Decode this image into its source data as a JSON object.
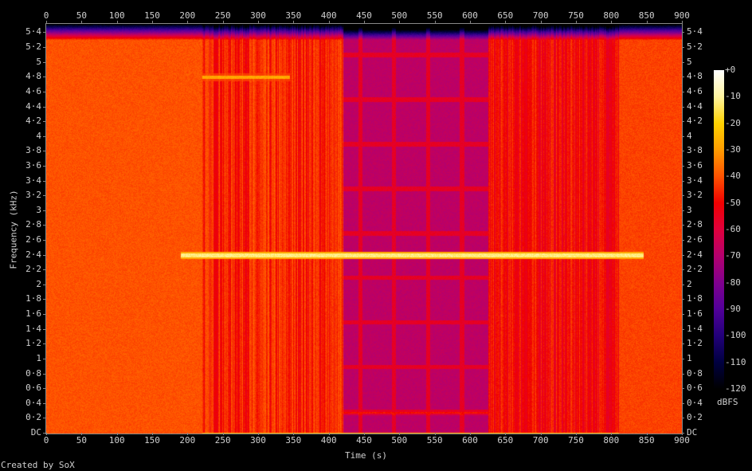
{
  "chart_data": {
    "type": "heatmap",
    "subtype": "spectrogram",
    "xlabel": "Time (s)",
    "ylabel": "Frequency (kHz)",
    "xlim": [
      0,
      900
    ],
    "ylim": [
      0,
      5.5125
    ],
    "x_ticks": [
      "0",
      "50",
      "100",
      "150",
      "200",
      "250",
      "300",
      "350",
      "400",
      "450",
      "500",
      "550",
      "600",
      "650",
      "700",
      "750",
      "800",
      "850",
      "900"
    ],
    "y_ticks": [
      "DC",
      "0·2",
      "0·4",
      "0·6",
      "0·8",
      "1",
      "1·2",
      "1·4",
      "1·6",
      "1·8",
      "2",
      "2·2",
      "2·4",
      "2·6",
      "2·8",
      "3",
      "3·2",
      "3·4",
      "3·6",
      "3·8",
      "4",
      "4·2",
      "4·4",
      "4·6",
      "4·8",
      "5",
      "5·2",
      "5·4"
    ],
    "colorbar": {
      "label": "dBFS",
      "range": [
        -120,
        0
      ],
      "ticks": [
        "+0",
        "-10",
        "-20",
        "-30",
        "-40",
        "-50",
        "-60",
        "-70",
        "-80",
        "-90",
        "-100",
        "-110",
        "-120"
      ],
      "colors": [
        "#ffffff",
        "#fff4a0",
        "#ffd200",
        "#ff9c00",
        "#ff5200",
        "#f00000",
        "#e0003c",
        "#b4006e",
        "#80008e",
        "#52009a",
        "#22007a",
        "#000040",
        "#000000"
      ]
    },
    "segments": [
      {
        "t": [
          0,
          220
        ],
        "level_dbfs": -40,
        "character": "uniform noise"
      },
      {
        "t": [
          220,
          420
        ],
        "level_dbfs": -46,
        "character": "vertical stripes"
      },
      {
        "t": [
          420,
          625
        ],
        "level_dbfs": -68,
        "character": "low-level blocks"
      },
      {
        "t": [
          625,
          810
        ],
        "level_dbfs": -50,
        "character": "vertical stripes"
      },
      {
        "t": [
          810,
          900
        ],
        "level_dbfs": -42,
        "character": "uniform noise"
      }
    ],
    "rolloff_khz": [
      5.3,
      5.5125
    ],
    "tones": [
      {
        "freq_khz": 2.4,
        "t": [
          190,
          845
        ],
        "level_dbfs": -12
      },
      {
        "freq_khz": 4.8,
        "t": [
          220,
          345
        ],
        "level_dbfs": -28
      }
    ]
  },
  "footer": "Created by SoX"
}
